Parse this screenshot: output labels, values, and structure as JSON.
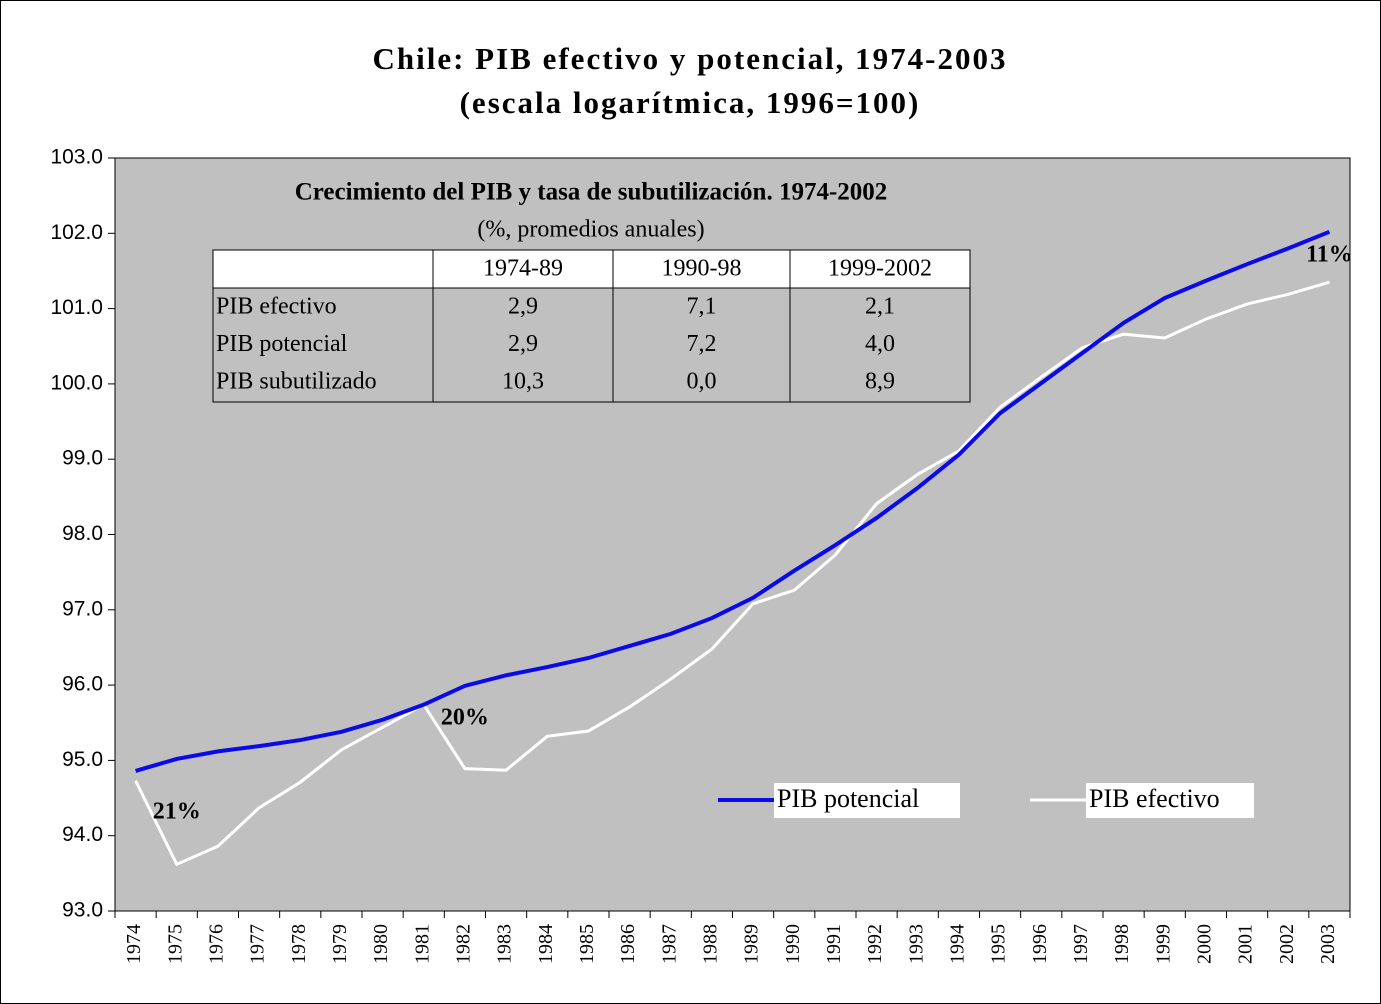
{
  "chart_data": {
    "type": "line",
    "title": "Chile: PIB efectivo y potencial, 1974-2003",
    "subtitle": "(escala logarítmica, 1996=100)",
    "categories": [
      "1974",
      "1975",
      "1976",
      "1977",
      "1978",
      "1979",
      "1980",
      "1981",
      "1982",
      "1983",
      "1984",
      "1985",
      "1986",
      "1987",
      "1988",
      "1989",
      "1990",
      "1991",
      "1992",
      "1993",
      "1994",
      "1995",
      "1996",
      "1997",
      "1998",
      "1999",
      "2000",
      "2001",
      "2002",
      "2003"
    ],
    "series": [
      {
        "name": "PIB potencial",
        "color": "#0a0ae6",
        "values": [
          94.86,
          95.02,
          95.12,
          95.19,
          95.27,
          95.38,
          95.54,
          95.74,
          95.99,
          96.13,
          96.24,
          96.36,
          96.52,
          96.68,
          96.89,
          97.16,
          97.52,
          97.86,
          98.22,
          98.62,
          99.06,
          99.61,
          100.01,
          100.41,
          100.81,
          101.14,
          101.37,
          101.59,
          101.8,
          102.02
        ]
      },
      {
        "name": "PIB efectivo",
        "color": "#ffffff",
        "values": [
          94.73,
          93.62,
          93.86,
          94.37,
          94.71,
          95.14,
          95.44,
          95.74,
          94.89,
          94.87,
          95.32,
          95.39,
          95.71,
          96.08,
          96.48,
          97.08,
          97.26,
          97.73,
          98.41,
          98.8,
          99.11,
          99.69,
          100.09,
          100.48,
          100.66,
          100.61,
          100.86,
          101.06,
          101.19,
          101.35
        ]
      }
    ],
    "ylim": [
      93,
      103
    ],
    "yticks": [
      {
        "value": 93,
        "label": "93.0"
      },
      {
        "value": 94,
        "label": "94.0"
      },
      {
        "value": 95,
        "label": "95.0"
      },
      {
        "value": 96,
        "label": "96.0"
      },
      {
        "value": 97,
        "label": "97.0"
      },
      {
        "value": 98,
        "label": "98.0"
      },
      {
        "value": 99,
        "label": "99.0"
      },
      {
        "value": 100,
        "label": "100.0"
      },
      {
        "value": 101,
        "label": "101.0"
      },
      {
        "value": 102,
        "label": "102.0"
      },
      {
        "value": 103,
        "label": "103.0"
      }
    ],
    "grid": false,
    "legend": "lower right",
    "annotations": [
      {
        "text": "21%",
        "category": "1975",
        "y": 94.3
      },
      {
        "text": "20%",
        "category": "1982",
        "y": 95.55
      },
      {
        "text": "11%",
        "category": "2003",
        "y": 101.7
      }
    ],
    "table": {
      "title": "Crecimiento del PIB y tasa de subutilización. 1974-2002",
      "subtitle": "(%, promedios anuales)",
      "columns": [
        "1974-89",
        "1990-98",
        "1999-2002"
      ],
      "rows": [
        {
          "label": "PIB efectivo",
          "values": [
            "2,9",
            "7,1",
            "2,1"
          ]
        },
        {
          "label": "PIB potencial",
          "values": [
            "2,9",
            "7,2",
            "4,0"
          ]
        },
        {
          "label": "PIB subutilizado",
          "values": [
            "10,3",
            "0,0",
            "8,9"
          ]
        }
      ]
    }
  }
}
